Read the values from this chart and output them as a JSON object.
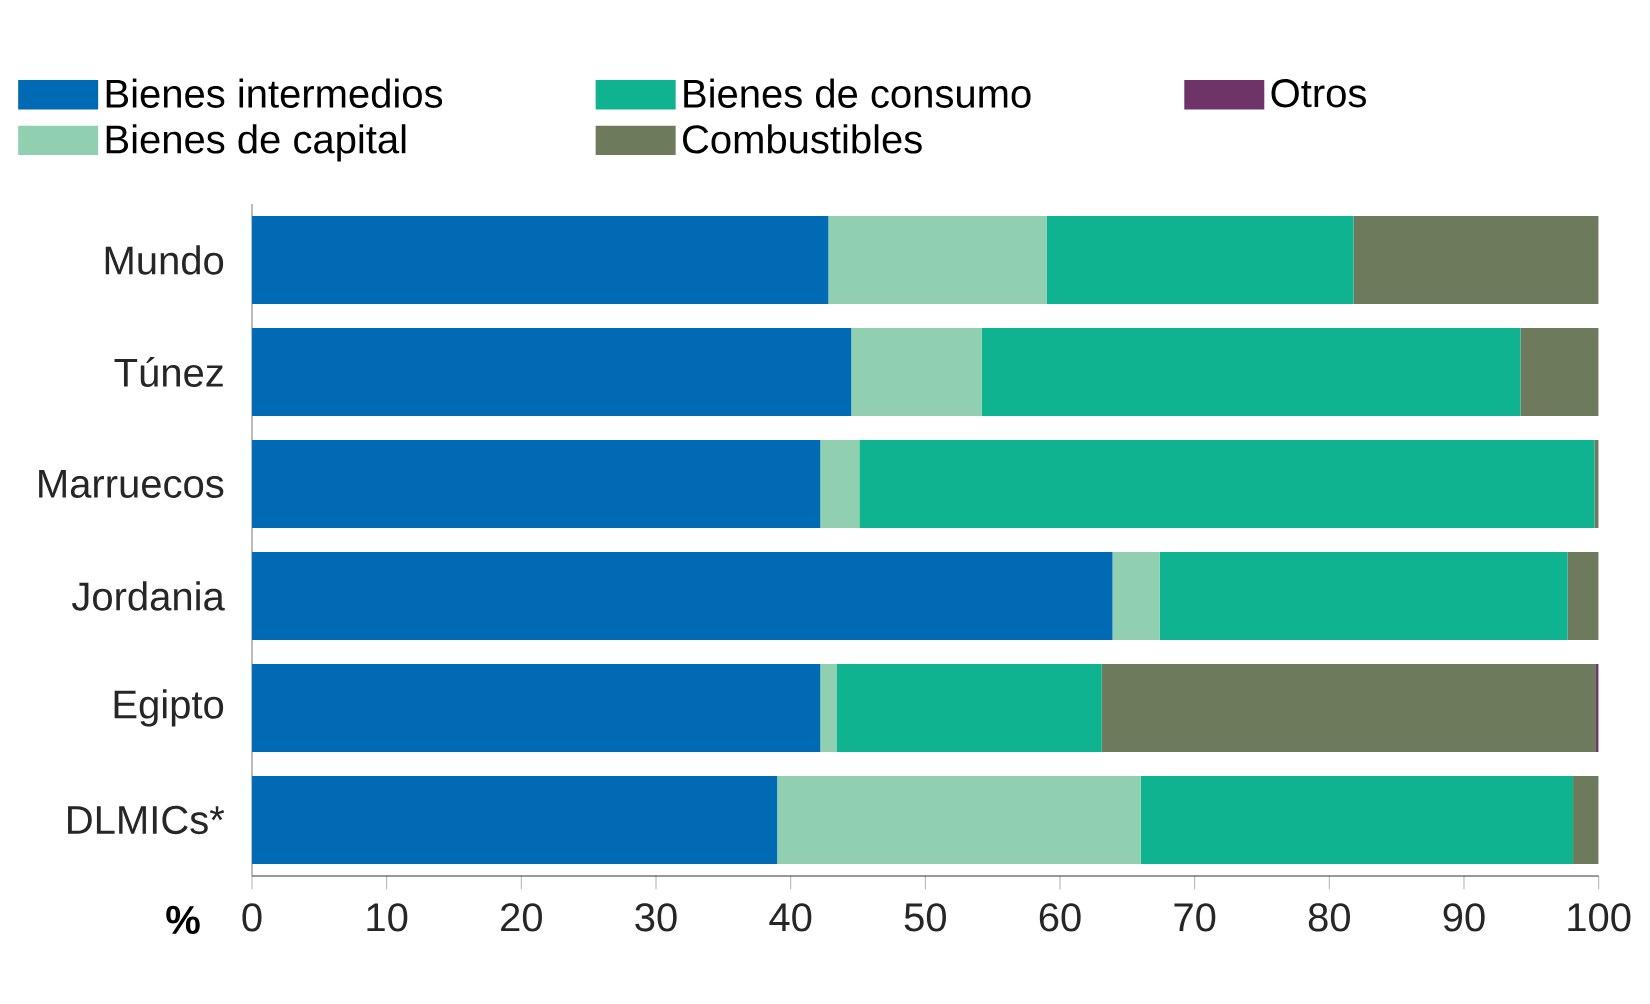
{
  "chart_data": {
    "type": "bar",
    "orientation": "horizontal",
    "stacked": true,
    "xlabel": "%",
    "categories": [
      "Mundo",
      "Túnez",
      "Marruecos",
      "Jordania",
      "Egipto",
      "DLMICs*"
    ],
    "series": [
      {
        "name": "Bienes intermedios",
        "color": "#006ab5",
        "values": [
          42.8,
          44.5,
          42.2,
          63.9,
          42.2,
          39.0
        ]
      },
      {
        "name": "Bienes de capital",
        "color": "#90cfb0",
        "values": [
          16.2,
          9.7,
          2.9,
          3.5,
          1.2,
          27.0
        ]
      },
      {
        "name": "Bienes de consumo",
        "color": "#0fb390",
        "values": [
          22.8,
          40.0,
          54.6,
          30.3,
          19.7,
          32.1
        ]
      },
      {
        "name": "Combustibles",
        "color": "#6d7a5c",
        "values": [
          18.2,
          5.8,
          0.3,
          2.3,
          36.7,
          1.9
        ]
      },
      {
        "name": "Otros",
        "color": "#6e3468",
        "values": [
          0,
          0,
          0,
          0,
          0.2,
          0
        ]
      }
    ],
    "xlim": [
      0,
      100
    ],
    "xticks": [
      0,
      10,
      20,
      30,
      40,
      50,
      60,
      70,
      80,
      90,
      100
    ],
    "legend": "top"
  }
}
